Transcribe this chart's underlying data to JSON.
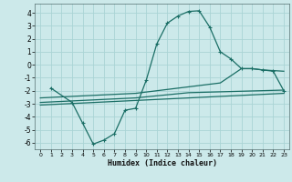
{
  "xlabel": "Humidex (Indice chaleur)",
  "bg_color": "#cce9ea",
  "grid_color": "#aad4d5",
  "line_color": "#1a6e65",
  "xlim": [
    -0.5,
    23.5
  ],
  "ylim": [
    -6.5,
    4.7
  ],
  "yticks": [
    -6,
    -5,
    -4,
    -3,
    -2,
    -1,
    0,
    1,
    2,
    3,
    4
  ],
  "xticks": [
    0,
    1,
    2,
    3,
    4,
    5,
    6,
    7,
    8,
    9,
    10,
    11,
    12,
    13,
    14,
    15,
    16,
    17,
    18,
    19,
    20,
    21,
    22,
    23
  ],
  "line1_x": [
    1,
    3,
    4,
    5,
    6,
    7,
    8,
    9,
    10,
    11,
    12,
    13,
    14,
    15,
    16,
    17,
    18,
    19,
    20,
    21,
    22,
    23
  ],
  "line1_y": [
    -1.8,
    -2.9,
    -4.5,
    -6.1,
    -5.8,
    -5.3,
    -3.5,
    -3.35,
    -1.2,
    1.6,
    3.2,
    3.75,
    4.1,
    4.15,
    2.9,
    1.0,
    0.45,
    -0.3,
    -0.3,
    -0.4,
    -0.5,
    -2.0
  ],
  "line2_x": [
    0,
    9,
    14,
    17,
    19,
    20,
    21,
    23
  ],
  "line2_y": [
    -2.55,
    -2.2,
    -1.7,
    -1.4,
    -0.3,
    -0.3,
    -0.4,
    -0.5
  ],
  "line3_x": [
    0,
    9,
    14,
    23
  ],
  "line3_y": [
    -2.9,
    -2.55,
    -2.15,
    -1.95
  ],
  "line4_x": [
    0,
    23
  ],
  "line4_y": [
    -3.1,
    -2.2
  ]
}
